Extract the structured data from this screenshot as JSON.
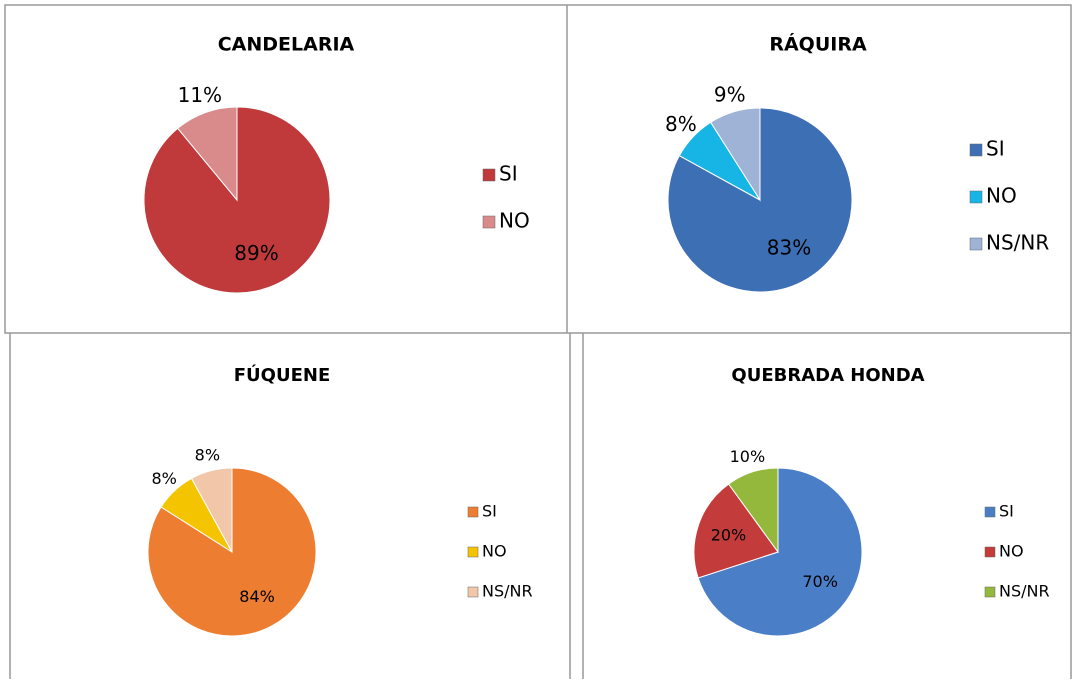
{
  "chart_data": [
    {
      "type": "pie",
      "title": "CANDELARIA",
      "categories": [
        "SI",
        "NO"
      ],
      "values": [
        89,
        11
      ],
      "value_labels": [
        "89%",
        "11%"
      ],
      "colors": [
        "#c0393b",
        "#d98a8b"
      ]
    },
    {
      "type": "pie",
      "title": "RÁQUIRA",
      "categories": [
        "SI",
        "NO",
        "NS/NR"
      ],
      "values": [
        83,
        8,
        9
      ],
      "value_labels": [
        "83%",
        "8%",
        "9%"
      ],
      "colors": [
        "#3d6fb5",
        "#17b5e6",
        "#9fb3d6"
      ]
    },
    {
      "type": "pie",
      "title": "FÚQUENE",
      "categories": [
        "SI",
        "NO",
        "NS/NR"
      ],
      "values": [
        84,
        8,
        8
      ],
      "value_labels": [
        "84%",
        "8%",
        "8%"
      ],
      "colors": [
        "#ed7d31",
        "#f5c400",
        "#f2c6a8"
      ]
    },
    {
      "type": "pie",
      "title": "QUEBRADA HONDA",
      "categories": [
        "SI",
        "NO",
        "NS/NR"
      ],
      "values": [
        70,
        20,
        10
      ],
      "value_labels": [
        "70%",
        "20%",
        "10%"
      ],
      "colors": [
        "#4a7fc8",
        "#c43b3b",
        "#93b83c"
      ]
    }
  ]
}
